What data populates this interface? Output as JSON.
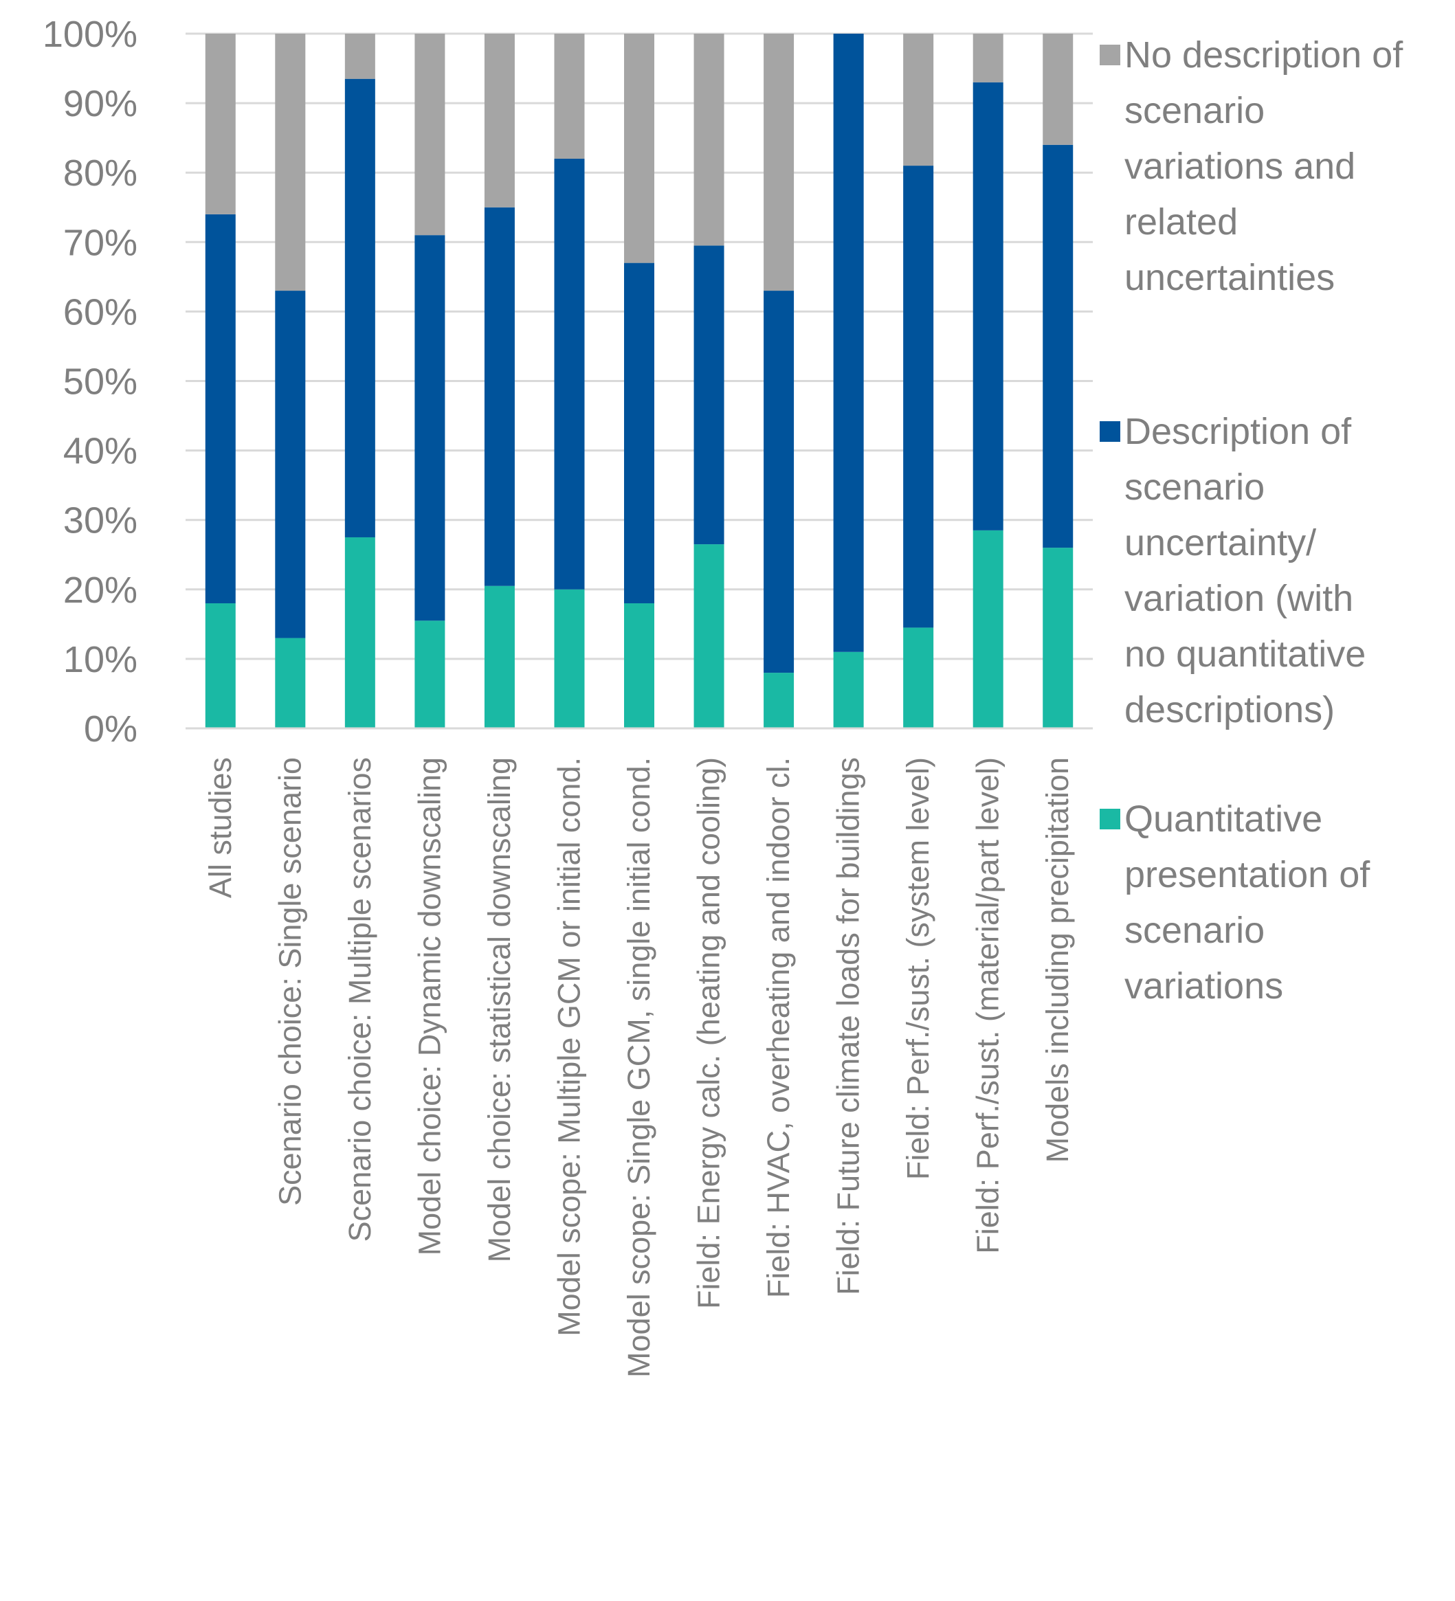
{
  "chart_data": {
    "type": "bar",
    "stacked": true,
    "categories": [
      "All studies",
      "Scenario choice: Single scenario",
      "Scenario choice: Multiple scenarios",
      "Model choice: Dynamic downscaling",
      "Model choice: statistical downscaling",
      "Model scope: Multiple GCM or initial cond.",
      "Model scope: Single GCM, single initial cond.",
      "Field: Energy calc. (heating and cooling)",
      "Field: HVAC, overheating and indoor cl.",
      "Field: Future climate loads for buildings",
      "Field: Perf./sust. (system level)",
      "Field: Perf./sust. (material/part level)",
      "Models including precipitation"
    ],
    "series": [
      {
        "name": "Quantitative presentation of scenario variations",
        "color": "#1ab9a4",
        "values": [
          18,
          13,
          27.5,
          15.5,
          20.5,
          20,
          18,
          26.5,
          8,
          11,
          14.5,
          28.5,
          26
        ]
      },
      {
        "name": "Description of scenario uncertainty/ variation (with no quantitative descriptions)",
        "color": "#00539b",
        "values": [
          56,
          50,
          66,
          55.5,
          54.5,
          62,
          49,
          43,
          55,
          89,
          66.5,
          64.5,
          58
        ]
      },
      {
        "name": "No description of scenario variations and related uncertainties",
        "color": "#a5a5a5",
        "values": [
          26,
          37,
          6.5,
          29,
          25,
          18,
          33,
          30.5,
          37,
          0,
          19,
          7,
          16
        ]
      }
    ],
    "yticks": [
      "0%",
      "10%",
      "20%",
      "30%",
      "40%",
      "50%",
      "60%",
      "70%",
      "80%",
      "90%",
      "100%"
    ],
    "ylim": [
      0,
      100
    ],
    "title": "",
    "xlabel": "",
    "ylabel": "",
    "grid": true,
    "legend": [
      {
        "name": "No description of scenario variations and related uncertainties",
        "color": "#a5a5a5",
        "lines": [
          "No description of",
          "scenario",
          "variations and",
          "related",
          "uncertainties"
        ]
      },
      {
        "name": "Description of scenario uncertainty/ variation (with no quantitative descriptions)",
        "color": "#00539b",
        "lines": [
          "Description of",
          "scenario",
          "uncertainty/",
          "variation (with",
          "no quantitative",
          "descriptions)"
        ]
      },
      {
        "name": "Quantitative presentation of scenario variations",
        "color": "#1ab9a4",
        "lines": [
          "Quantitative",
          "presentation of",
          "scenario",
          "variations"
        ]
      }
    ],
    "legend_position": "right"
  }
}
